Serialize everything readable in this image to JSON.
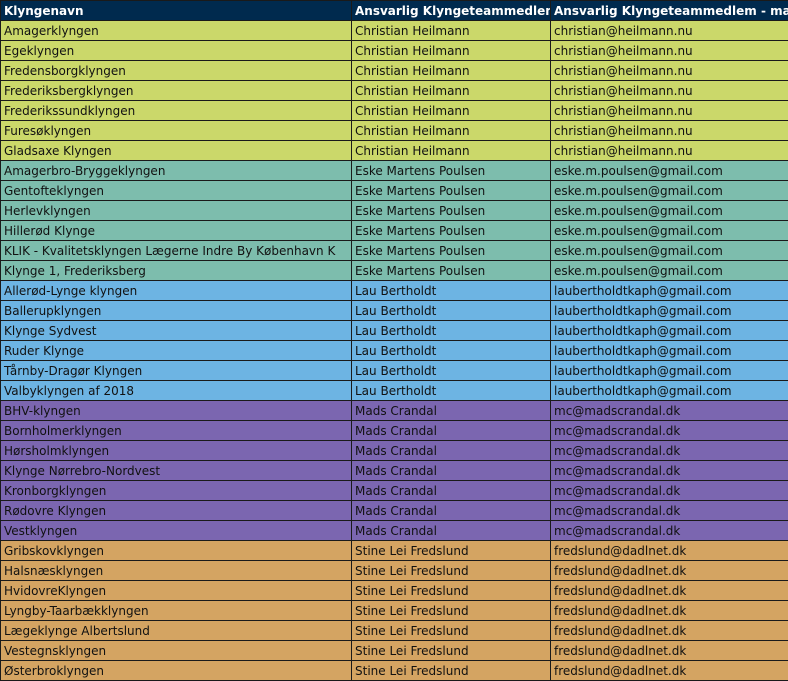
{
  "headers": [
    "Klyngenavn",
    "Ansvarlig Klyngeteammedlem",
    "Ansvarlig Klyngeteammedlem - mail"
  ],
  "colors": {
    "header": "#002a4e",
    "green": "#cbd86a",
    "teal": "#7dbdad",
    "blue": "#6db4e3",
    "purple": "#7b66b0",
    "orange": "#d4a462"
  },
  "groups": [
    {
      "color": "green",
      "member": "Christian Heilmann",
      "mail": "christian@heilmann.nu",
      "clusters": [
        "Amagerklyngen",
        "Egeklyngen",
        "Fredensborgklyngen",
        "Frederiksbergklyngen",
        "Frederikssundklyngen",
        "Furesøklyngen",
        "Gladsaxe Klyngen"
      ]
    },
    {
      "color": "teal",
      "member": "Eske Martens Poulsen",
      "mail": "eske.m.poulsen@gmail.com",
      "clusters": [
        "Amagerbro-Bryggeklyngen",
        "Gentofteklyngen",
        "Herlevklyngen",
        "Hillerød Klynge",
        "KLIK - Kvalitetsklyngen Lægerne Indre By København K",
        "Klynge 1, Frederiksberg"
      ]
    },
    {
      "color": "blue",
      "member": "Lau Bertholdt",
      "mail": "laubertholdtkaph@gmail.com",
      "clusters": [
        "Allerød-Lynge klyngen",
        "Ballerupklyngen",
        "Klynge Sydvest",
        "Ruder Klynge",
        "Tårnby-Dragør Klyngen",
        "Valbyklyngen af 2018"
      ]
    },
    {
      "color": "purple",
      "member": "Mads Crandal",
      "mail": "mc@madscrandal.dk",
      "clusters": [
        "BHV-klyngen",
        "Bornholmerklyngen",
        "Hørsholmklyngen",
        "Klynge Nørrebro-Nordvest",
        "Kronborgklyngen",
        "Rødovre Klyngen",
        "Vestklyngen"
      ]
    },
    {
      "color": "orange",
      "member": "Stine Lei Fredslund",
      "mail": "fredslund@dadlnet.dk",
      "clusters": [
        "Gribskovklyngen",
        "Halsnæsklyngen",
        "HvidovreKlyngen",
        "Lyngby-Taarbækklyngen",
        "Lægeklynge Albertslund",
        "Vestegnsklyngen",
        "Østerbroklyngen"
      ]
    }
  ]
}
